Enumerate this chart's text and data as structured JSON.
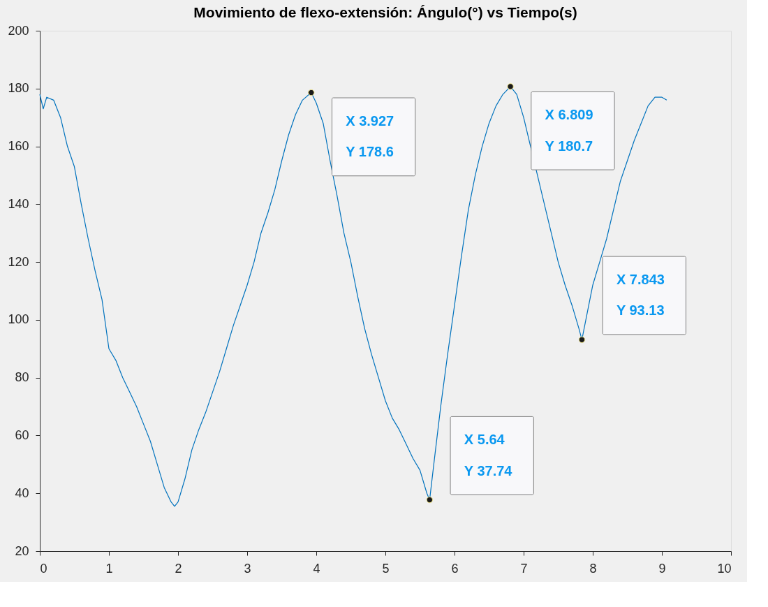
{
  "chart_data": {
    "type": "line",
    "title": "Movimiento de flexo-extensión: Ángulo(°) vs Tiempo(s)",
    "xlim": [
      0,
      10
    ],
    "xticks": [
      0,
      1,
      2,
      3,
      4,
      5,
      6,
      7,
      8,
      9,
      10
    ],
    "ylim": [
      20,
      200
    ],
    "yticks": [
      20,
      40,
      60,
      80,
      100,
      120,
      140,
      160,
      180,
      200
    ],
    "grid": false,
    "marker": "none",
    "line_style": "solid",
    "series": [
      {
        "color": "#0072bd",
        "x": [
          0,
          0.05,
          0.1,
          0.2,
          0.3,
          0.4,
          0.5,
          0.6,
          0.7,
          0.8,
          0.9,
          1.0,
          1.1,
          1.2,
          1.3,
          1.4,
          1.5,
          1.6,
          1.7,
          1.8,
          1.9,
          1.95,
          2.0,
          2.1,
          2.2,
          2.3,
          2.4,
          2.5,
          2.6,
          2.7,
          2.8,
          2.9,
          3.0,
          3.1,
          3.2,
          3.3,
          3.4,
          3.5,
          3.6,
          3.7,
          3.8,
          3.927,
          4.0,
          4.1,
          4.2,
          4.3,
          4.4,
          4.5,
          4.6,
          4.7,
          4.8,
          4.9,
          5.0,
          5.1,
          5.2,
          5.3,
          5.4,
          5.5,
          5.6,
          5.64,
          5.7,
          5.8,
          5.9,
          6.0,
          6.1,
          6.2,
          6.3,
          6.4,
          6.5,
          6.6,
          6.7,
          6.809,
          6.9,
          7.0,
          7.1,
          7.2,
          7.3,
          7.4,
          7.5,
          7.6,
          7.7,
          7.8,
          7.843,
          7.9,
          8.0,
          8.1,
          8.2,
          8.3,
          8.4,
          8.5,
          8.6,
          8.7,
          8.8,
          8.9,
          9.0,
          9.07
        ],
        "values": [
          178,
          173,
          177,
          176,
          170,
          160,
          153,
          140,
          128,
          117,
          107,
          90,
          86,
          80,
          75,
          70,
          64,
          58,
          50,
          42,
          37,
          35.5,
          37,
          45,
          55,
          62,
          68,
          75,
          82,
          90,
          98,
          105,
          112,
          120,
          130,
          137,
          145,
          155,
          164,
          171,
          176,
          178.6,
          175,
          168,
          155,
          143,
          130,
          120,
          108,
          97,
          88,
          80,
          72,
          66,
          62,
          57,
          52,
          48,
          40,
          37.74,
          50,
          70,
          88,
          105,
          122,
          138,
          150,
          160,
          168,
          174,
          178,
          180.7,
          178,
          170,
          160,
          150,
          140,
          130,
          120,
          112,
          105,
          97,
          93.13,
          100,
          112,
          120,
          128,
          138,
          148,
          155,
          162,
          168,
          174,
          177,
          177,
          176
        ]
      }
    ],
    "annotations": [
      {
        "text": "X 3.927\nY 178.6",
        "x": 3.927,
        "y": 178.6
      },
      {
        "text": "X 6.809\nY 180.7",
        "x": 6.809,
        "y": 180.7
      },
      {
        "text": "X 5.64\nY 37.74",
        "x": 5.64,
        "y": 37.74
      },
      {
        "text": "X 7.843\nY 93.13",
        "x": 7.843,
        "y": 93.13
      }
    ]
  }
}
